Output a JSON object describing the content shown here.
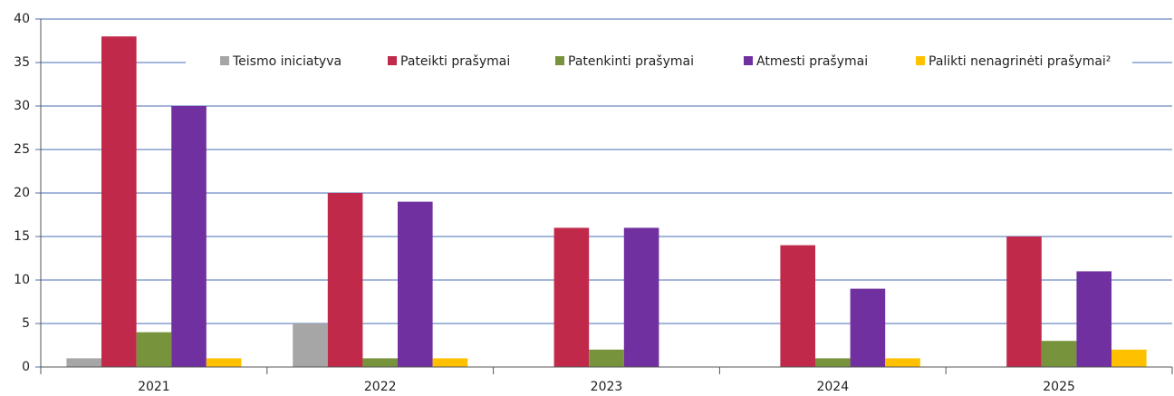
{
  "chart_data": {
    "type": "bar",
    "categories": [
      "2021",
      "2022",
      "2023",
      "2024",
      "2025"
    ],
    "series": [
      {
        "name": "Teismo iniciatyva",
        "color": "#a6a6a6",
        "values": [
          1,
          5,
          0,
          0,
          0
        ]
      },
      {
        "name": "Pateikti prašymai",
        "color": "#c0294a",
        "values": [
          38,
          20,
          16,
          14,
          15
        ]
      },
      {
        "name": "Patenkinti prašymai",
        "color": "#77933c",
        "values": [
          4,
          1,
          2,
          1,
          3
        ]
      },
      {
        "name": "Atmesti prašymai",
        "color": "#7030a0",
        "values": [
          30,
          19,
          16,
          9,
          11
        ]
      },
      {
        "name": "Palikti nenagrinėti prašymai²",
        "color": "#ffc000",
        "values": [
          1,
          1,
          0,
          1,
          2
        ]
      }
    ],
    "ylim": [
      0,
      40
    ],
    "yticks": [
      0,
      5,
      10,
      15,
      20,
      25,
      30,
      35,
      40
    ],
    "grid": true,
    "legend": "top"
  }
}
